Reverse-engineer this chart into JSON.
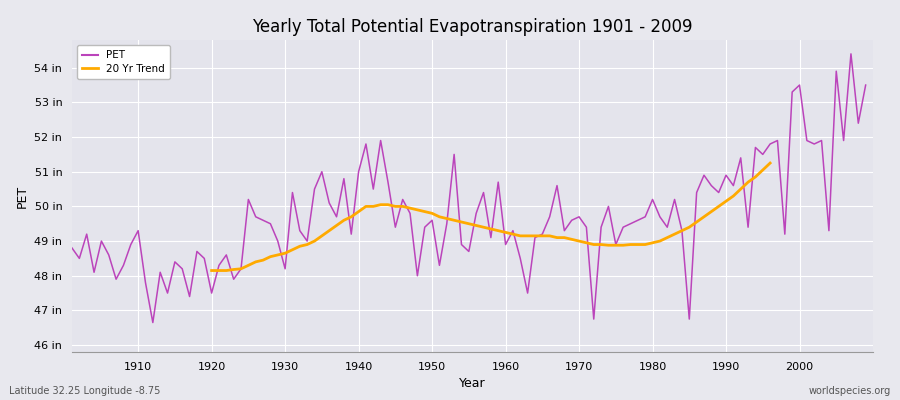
{
  "title": "Yearly Total Potential Evapotranspiration 1901 - 2009",
  "xlabel": "Year",
  "ylabel": "PET",
  "subtitle_left": "Latitude 32.25 Longitude -8.75",
  "subtitle_right": "worldspecies.org",
  "pet_color": "#bb44bb",
  "trend_color": "#ffaa00",
  "bg_color": "#e8e8ee",
  "plot_bg_color": "#e4e4ec",
  "ylim": [
    45.8,
    54.8
  ],
  "yticks": [
    46,
    47,
    48,
    49,
    50,
    51,
    52,
    53,
    54
  ],
  "ytick_labels": [
    "46 in",
    "47 in",
    "48 in",
    "49 in",
    "50 in",
    "51 in",
    "52 in",
    "53 in",
    "54 in"
  ],
  "years": [
    1901,
    1902,
    1903,
    1904,
    1905,
    1906,
    1907,
    1908,
    1909,
    1910,
    1911,
    1912,
    1913,
    1914,
    1915,
    1916,
    1917,
    1918,
    1919,
    1920,
    1921,
    1922,
    1923,
    1924,
    1925,
    1926,
    1927,
    1928,
    1929,
    1930,
    1931,
    1932,
    1933,
    1934,
    1935,
    1936,
    1937,
    1938,
    1939,
    1940,
    1941,
    1942,
    1943,
    1944,
    1945,
    1946,
    1947,
    1948,
    1949,
    1950,
    1951,
    1952,
    1953,
    1954,
    1955,
    1956,
    1957,
    1958,
    1959,
    1960,
    1961,
    1962,
    1963,
    1964,
    1965,
    1966,
    1967,
    1968,
    1969,
    1970,
    1971,
    1972,
    1973,
    1974,
    1975,
    1976,
    1977,
    1978,
    1979,
    1980,
    1981,
    1982,
    1983,
    1984,
    1985,
    1986,
    1987,
    1988,
    1989,
    1990,
    1991,
    1992,
    1993,
    1994,
    1995,
    1996,
    1997,
    1998,
    1999,
    2000,
    2001,
    2002,
    2003,
    2004,
    2005,
    2006,
    2007,
    2008,
    2009
  ],
  "pet": [
    48.8,
    48.5,
    49.2,
    48.1,
    49.0,
    48.6,
    47.9,
    48.3,
    48.9,
    49.3,
    47.8,
    46.65,
    48.1,
    47.5,
    48.4,
    48.2,
    47.4,
    48.7,
    48.5,
    47.5,
    48.3,
    48.6,
    47.9,
    48.2,
    50.2,
    49.7,
    49.6,
    49.5,
    49.0,
    48.2,
    50.4,
    49.3,
    49.0,
    50.5,
    51.0,
    50.1,
    49.7,
    50.8,
    49.2,
    51.0,
    51.8,
    50.5,
    51.9,
    50.7,
    49.4,
    50.2,
    49.8,
    48.0,
    49.4,
    49.6,
    48.3,
    49.5,
    51.5,
    48.9,
    48.7,
    49.8,
    50.4,
    49.1,
    50.7,
    48.9,
    49.3,
    48.5,
    47.5,
    49.1,
    49.2,
    49.7,
    50.6,
    49.3,
    49.6,
    49.7,
    49.4,
    46.75,
    49.4,
    50.0,
    48.9,
    49.4,
    49.5,
    49.6,
    49.7,
    50.2,
    49.7,
    49.4,
    50.2,
    49.3,
    46.75,
    50.4,
    50.9,
    50.6,
    50.4,
    50.9,
    50.6,
    51.4,
    49.4,
    51.7,
    51.5,
    51.8,
    51.9,
    49.2,
    53.3,
    53.5,
    51.9,
    51.8,
    51.9,
    49.3,
    53.9,
    51.9,
    54.4,
    52.4,
    53.5
  ],
  "trend": [
    null,
    null,
    null,
    null,
    null,
    null,
    null,
    null,
    null,
    null,
    null,
    null,
    null,
    null,
    null,
    null,
    null,
    null,
    null,
    48.15,
    48.15,
    48.15,
    48.18,
    48.2,
    48.3,
    48.4,
    48.45,
    48.55,
    48.6,
    48.65,
    48.75,
    48.85,
    48.9,
    49.0,
    49.15,
    49.3,
    49.45,
    49.6,
    49.7,
    49.85,
    50.0,
    50.0,
    50.05,
    50.05,
    50.0,
    50.0,
    49.95,
    49.9,
    49.85,
    49.8,
    49.7,
    49.65,
    49.6,
    49.55,
    49.5,
    49.45,
    49.4,
    49.35,
    49.3,
    49.25,
    49.2,
    49.15,
    49.15,
    49.15,
    49.15,
    49.15,
    49.1,
    49.1,
    49.05,
    49.0,
    48.95,
    48.9,
    48.9,
    48.88,
    48.88,
    48.88,
    48.9,
    48.9,
    48.9,
    48.95,
    49.0,
    49.1,
    49.2,
    49.3,
    49.4,
    49.55,
    49.7,
    49.85,
    50.0,
    50.15,
    50.3,
    50.5,
    50.7,
    50.85,
    51.05,
    51.25,
    null,
    null,
    null,
    null,
    null,
    null,
    null,
    null,
    null,
    null,
    null
  ]
}
